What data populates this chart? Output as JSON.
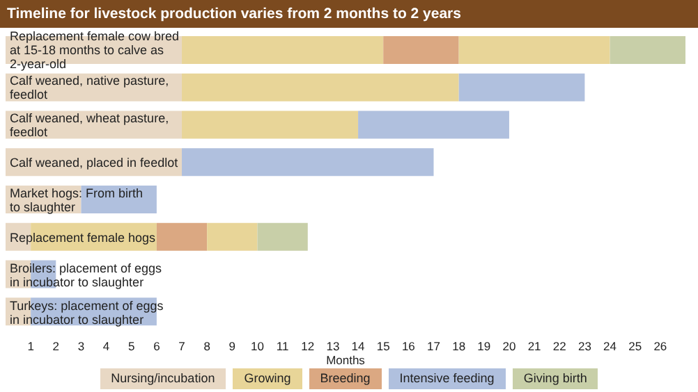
{
  "chart_data": {
    "type": "bar",
    "title": "Timeline for livestock production varies from 2 months to 2 years",
    "xlabel": "Months",
    "orientation": "horizontal",
    "stacked": true,
    "legend": "bottom",
    "categories": [
      "Replacement female cow bred\nat 15-18 months to calve as\n2-year-old",
      "Calf weaned, native pasture,\nfeedlot",
      "Calf weaned, wheat pasture,\nfeedlot",
      "Calf weaned, placed in feedlot",
      "Market hogs:  From birth\nto slaughter",
      "Replacement female hogs",
      "Broilers: placement of eggs\nin incubator to slaughter",
      "Turkeys: placement of eggs\nin incubator to slaughter"
    ],
    "xlim": [
      0,
      27
    ],
    "xticks": [
      1,
      2,
      3,
      4,
      5,
      6,
      7,
      8,
      9,
      10,
      11,
      12,
      13,
      14,
      15,
      16,
      17,
      18,
      19,
      20,
      21,
      22,
      23,
      24,
      25,
      26
    ],
    "series": [
      {
        "name": "Nursing/incubation",
        "color": "#e8d8c4",
        "values": [
          7,
          7,
          7,
          7,
          3,
          1,
          1,
          1
        ]
      },
      {
        "name": "Growing",
        "color": "#e8d598",
        "values": [
          8,
          11,
          7,
          null,
          null,
          5,
          null,
          null
        ]
      },
      {
        "name": "Breeding",
        "color": "#dba882",
        "values": [
          3,
          null,
          null,
          null,
          null,
          2,
          null,
          null
        ]
      },
      {
        "color": "#e8d598",
        "values": [
          6,
          null,
          null,
          null,
          null,
          2,
          null,
          null
        ]
      },
      {
        "name": "Intensive feeding",
        "color": "#b0c0de",
        "values": [
          null,
          5,
          6,
          10,
          3,
          null,
          1,
          5
        ]
      },
      {
        "name": "Giving birth",
        "color": "#c8cfa8",
        "values": [
          3,
          null,
          null,
          null,
          null,
          2,
          null,
          null
        ]
      }
    ]
  }
}
